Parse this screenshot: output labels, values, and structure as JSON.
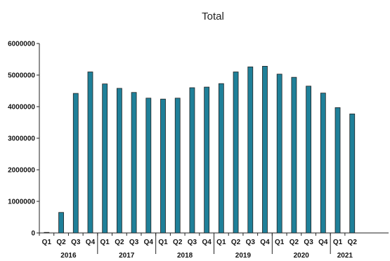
{
  "chart_data": {
    "type": "bar",
    "title": "Total",
    "xlabel": "",
    "ylabel": "",
    "ylim": [
      0,
      6000000
    ],
    "yticks": [
      "0",
      "1000000",
      "2000000",
      "3000000",
      "4000000",
      "5000000",
      "6000000"
    ],
    "grid": false,
    "bar_color": "#1f8099",
    "bar_stroke": "#222222",
    "groups": [
      {
        "year": "2016",
        "quarters": [
          "Q1",
          "Q2",
          "Q3",
          "Q4"
        ],
        "values": [
          0,
          650000,
          4420000,
          5100000
        ]
      },
      {
        "year": "2017",
        "quarters": [
          "Q1",
          "Q2",
          "Q3",
          "Q4"
        ],
        "values": [
          4720000,
          4580000,
          4450000,
          4270000
        ]
      },
      {
        "year": "2018",
        "quarters": [
          "Q1",
          "Q2",
          "Q3",
          "Q4"
        ],
        "values": [
          4240000,
          4270000,
          4600000,
          4620000
        ]
      },
      {
        "year": "2019",
        "quarters": [
          "Q1",
          "Q2",
          "Q3",
          "Q4"
        ],
        "values": [
          4730000,
          5100000,
          5260000,
          5280000
        ]
      },
      {
        "year": "2020",
        "quarters": [
          "Q1",
          "Q2",
          "Q3",
          "Q4"
        ],
        "values": [
          5030000,
          4930000,
          4650000,
          4430000
        ]
      },
      {
        "year": "2021",
        "quarters": [
          "Q1",
          "Q2"
        ],
        "values": [
          3970000,
          3770000
        ]
      }
    ]
  }
}
